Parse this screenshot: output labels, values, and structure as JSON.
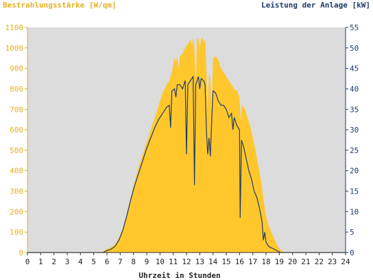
{
  "chart_data": {
    "type": "area",
    "left_axis_label": "Bestrahlungsstärke [W/qm]",
    "right_axis_label": "Leistung der Anlage [kW]",
    "xlabel": "Uhrzeit in Stunden",
    "xlim": [
      0,
      24
    ],
    "ylim_left": [
      0,
      1100
    ],
    "ylim_right": [
      0,
      55
    ],
    "x_ticks": [
      "0",
      "1",
      "2",
      "3",
      "4",
      "5",
      "6",
      "7",
      "8",
      "9",
      "10",
      "11",
      "12",
      "13",
      "14",
      "15",
      "16",
      "17",
      "18",
      "19",
      "20",
      "21",
      "22",
      "23",
      "24"
    ],
    "y_left_ticks": [
      "0",
      "100",
      "200",
      "300",
      "400",
      "500",
      "600",
      "700",
      "800",
      "900",
      "1000",
      "1100"
    ],
    "y_right_ticks": [
      "0",
      "5",
      "10",
      "15",
      "20",
      "25",
      "30",
      "35",
      "40",
      "45",
      "50",
      "55"
    ],
    "colors": {
      "irradiance": "#FFC72C",
      "power": "#1F3A6B",
      "plot_background": "#DCDCDC",
      "left_axis_text": "#E6B020",
      "right_axis_text": "#1F3A6B"
    },
    "series": [
      {
        "name": "Bestrahlungsstärke [W/qm]",
        "axis": "left",
        "kind": "area",
        "points": [
          [
            0,
            0
          ],
          [
            5.6,
            0
          ],
          [
            5.8,
            10
          ],
          [
            6,
            18
          ],
          [
            6.3,
            25
          ],
          [
            6.6,
            40
          ],
          [
            6.9,
            70
          ],
          [
            7.2,
            120
          ],
          [
            7.5,
            190
          ],
          [
            7.8,
            270
          ],
          [
            8.1,
            350
          ],
          [
            8.4,
            420
          ],
          [
            8.7,
            480
          ],
          [
            9,
            540
          ],
          [
            9.3,
            600
          ],
          [
            9.6,
            660
          ],
          [
            9.9,
            720
          ],
          [
            10.2,
            780
          ],
          [
            10.5,
            820
          ],
          [
            10.7,
            840
          ],
          [
            10.9,
            880
          ],
          [
            11.0,
            920
          ],
          [
            11.1,
            950
          ],
          [
            11.2,
            930
          ],
          [
            11.3,
            960
          ],
          [
            11.4,
            900
          ],
          [
            11.5,
            960
          ],
          [
            11.7,
            970
          ],
          [
            11.9,
            1000
          ],
          [
            12.1,
            1020
          ],
          [
            12.3,
            1040
          ],
          [
            12.4,
            1010
          ],
          [
            12.5,
            1050
          ],
          [
            12.6,
            1000
          ],
          [
            12.7,
            820
          ],
          [
            12.8,
            1040
          ],
          [
            12.9,
            1050
          ],
          [
            13.0,
            1000
          ],
          [
            13.1,
            1040
          ],
          [
            13.2,
            1050
          ],
          [
            13.3,
            1030
          ],
          [
            13.4,
            1040
          ],
          [
            13.5,
            900
          ],
          [
            13.6,
            700
          ],
          [
            13.7,
            880
          ],
          [
            13.8,
            850
          ],
          [
            13.9,
            680
          ],
          [
            14.0,
            950
          ],
          [
            14.2,
            960
          ],
          [
            14.4,
            940
          ],
          [
            14.6,
            900
          ],
          [
            14.8,
            880
          ],
          [
            15.0,
            860
          ],
          [
            15.2,
            840
          ],
          [
            15.4,
            820
          ],
          [
            15.6,
            800
          ],
          [
            15.8,
            790
          ],
          [
            16.0,
            760
          ],
          [
            16.1,
            640
          ],
          [
            16.2,
            720
          ],
          [
            16.4,
            700
          ],
          [
            16.6,
            660
          ],
          [
            16.8,
            620
          ],
          [
            17.0,
            560
          ],
          [
            17.2,
            500
          ],
          [
            17.4,
            430
          ],
          [
            17.6,
            360
          ],
          [
            17.8,
            260
          ],
          [
            18.0,
            180
          ],
          [
            18.2,
            130
          ],
          [
            18.4,
            100
          ],
          [
            18.6,
            70
          ],
          [
            18.8,
            40
          ],
          [
            19.0,
            20
          ],
          [
            19.2,
            8
          ],
          [
            19.5,
            0
          ],
          [
            24,
            0
          ]
        ]
      },
      {
        "name": "Leistung der Anlage [kW]",
        "axis": "right",
        "kind": "line",
        "points": [
          [
            0,
            0
          ],
          [
            5.7,
            0
          ],
          [
            6,
            0.5
          ],
          [
            6.3,
            0.8
          ],
          [
            6.6,
            1.5
          ],
          [
            6.9,
            3
          ],
          [
            7.2,
            5.5
          ],
          [
            7.5,
            9
          ],
          [
            7.8,
            13
          ],
          [
            8.1,
            16.5
          ],
          [
            8.4,
            19.5
          ],
          [
            8.7,
            22.5
          ],
          [
            9,
            25.5
          ],
          [
            9.3,
            28
          ],
          [
            9.6,
            30.5
          ],
          [
            9.9,
            32.5
          ],
          [
            10.2,
            34
          ],
          [
            10.5,
            35.5
          ],
          [
            10.7,
            36
          ],
          [
            10.8,
            30.5
          ],
          [
            10.9,
            39.5
          ],
          [
            11.1,
            40
          ],
          [
            11.2,
            38
          ],
          [
            11.3,
            41
          ],
          [
            11.5,
            41
          ],
          [
            11.7,
            40
          ],
          [
            11.8,
            41
          ],
          [
            11.9,
            42
          ],
          [
            12.0,
            24
          ],
          [
            12.1,
            41
          ],
          [
            12.3,
            42
          ],
          [
            12.4,
            42.5
          ],
          [
            12.5,
            43
          ],
          [
            12.6,
            16.5
          ],
          [
            12.7,
            41
          ],
          [
            12.8,
            42
          ],
          [
            12.9,
            43
          ],
          [
            13.0,
            40
          ],
          [
            13.1,
            42.5
          ],
          [
            13.3,
            42
          ],
          [
            13.4,
            41
          ],
          [
            13.5,
            30
          ],
          [
            13.6,
            24
          ],
          [
            13.7,
            28
          ],
          [
            13.8,
            23.5
          ],
          [
            13.9,
            32
          ],
          [
            14.0,
            39.5
          ],
          [
            14.2,
            39
          ],
          [
            14.4,
            37
          ],
          [
            14.6,
            36
          ],
          [
            14.8,
            36
          ],
          [
            15.0,
            35
          ],
          [
            15.2,
            33
          ],
          [
            15.4,
            34
          ],
          [
            15.5,
            30
          ],
          [
            15.6,
            33
          ],
          [
            15.8,
            31
          ],
          [
            16.0,
            30
          ],
          [
            16.05,
            8.5
          ],
          [
            16.15,
            27.5
          ],
          [
            16.3,
            26
          ],
          [
            16.5,
            23
          ],
          [
            16.7,
            20
          ],
          [
            16.9,
            18
          ],
          [
            17.1,
            15
          ],
          [
            17.3,
            13.5
          ],
          [
            17.5,
            11
          ],
          [
            17.7,
            7.5
          ],
          [
            17.8,
            3
          ],
          [
            17.9,
            5
          ],
          [
            18.0,
            2.5
          ],
          [
            18.2,
            1.5
          ],
          [
            18.5,
            1
          ],
          [
            18.8,
            0.5
          ],
          [
            19.1,
            0
          ],
          [
            24,
            0
          ]
        ]
      }
    ]
  }
}
